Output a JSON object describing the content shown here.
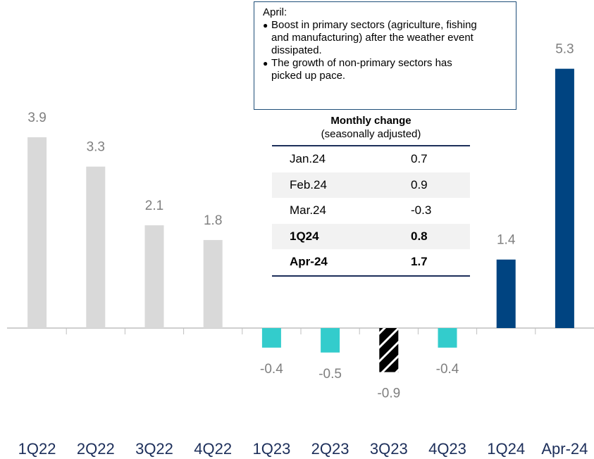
{
  "chart_data": {
    "type": "bar",
    "categories": [
      "1Q22",
      "2Q22",
      "3Q22",
      "4Q22",
      "1Q23",
      "2Q23",
      "3Q23",
      "4Q23",
      "1Q24",
      "Apr-24"
    ],
    "values": [
      3.9,
      3.3,
      2.1,
      1.8,
      -0.4,
      -0.5,
      -0.9,
      -0.4,
      1.4,
      5.3
    ],
    "colors": [
      "#d9d9d9",
      "#d9d9d9",
      "#d9d9d9",
      "#d9d9d9",
      "#33cccc",
      "#33cccc",
      "#33cccc",
      "#33cccc",
      "#004481",
      "#004481"
    ],
    "hatched": [
      false,
      false,
      false,
      false,
      false,
      false,
      true,
      false,
      false,
      false
    ],
    "ylim": [
      -2,
      6
    ],
    "annotation": {
      "title": "April:",
      "bullets": [
        "Boost in primary sectors (agriculture, fishing and manufacturing) after the weather event dissipated.",
        "The growth of non-primary sectors has picked up pace."
      ]
    },
    "table": {
      "title": "Monthly change",
      "subtitle": "(seasonally adjusted)",
      "rows": [
        [
          "Jan.24",
          0.7
        ],
        [
          "Feb.24",
          0.9
        ],
        [
          "Mar.24",
          -0.3
        ],
        [
          "1Q24",
          0.8
        ],
        [
          "Apr-24",
          1.7
        ]
      ]
    }
  }
}
